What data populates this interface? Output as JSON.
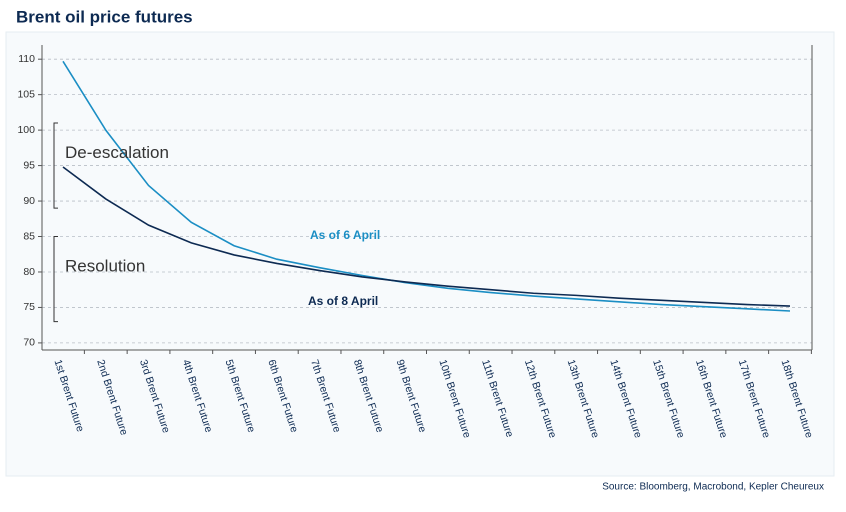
{
  "chart_data": {
    "type": "line",
    "title": "Brent oil price futures",
    "source": "Source: Bloomberg, Macrobond, Kepler Cheureux",
    "categories": [
      "1st Brent Future",
      "2nd Brent Future",
      "3rd Brent Future",
      "4th Brent Future",
      "5th Brent Future",
      "6th Brent Future",
      "7th Brent Future",
      "8th Brent Future",
      "9th Brent Future",
      "10th Brent Future",
      "11th Brent Future",
      "12th Brent Future",
      "13th Brent Future",
      "14th Brent Future",
      "15th Brent Future",
      "16th Brent Future",
      "17th Brent Future",
      "18th Brent Future"
    ],
    "series": [
      {
        "name": "As of 6 April",
        "color": "#1b8ec4",
        "values": [
          109.7,
          100.0,
          92.2,
          87.0,
          83.7,
          81.8,
          80.6,
          79.5,
          78.5,
          77.7,
          77.1,
          76.6,
          76.2,
          75.8,
          75.4,
          75.1,
          74.8,
          74.5
        ]
      },
      {
        "name": "As of 8 April",
        "color": "#0d2a52",
        "values": [
          94.8,
          90.3,
          86.6,
          84.1,
          82.4,
          81.2,
          80.2,
          79.3,
          78.6,
          78.0,
          77.5,
          77.0,
          76.7,
          76.3,
          76.0,
          75.7,
          75.4,
          75.2
        ]
      }
    ],
    "annotations": [
      {
        "text": "De-escalation",
        "range": [
          89,
          101
        ]
      },
      {
        "text": "Resolution",
        "range": [
          73,
          85
        ]
      }
    ],
    "ylim": [
      69,
      112
    ],
    "yticks": [
      70,
      75,
      80,
      85,
      90,
      95,
      100,
      105,
      110
    ],
    "grid": true
  }
}
